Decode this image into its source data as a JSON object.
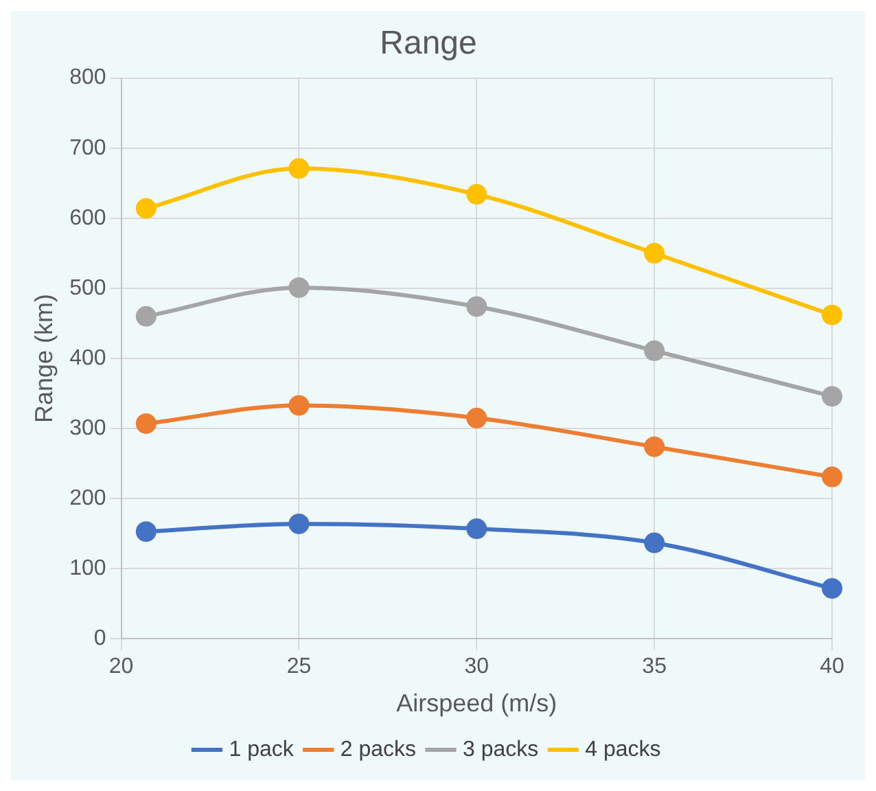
{
  "chart_data": {
    "type": "line",
    "title": "Range",
    "xlabel": "Airspeed (m/s)",
    "ylabel": "Range (km)",
    "x": [
      20.7,
      25,
      30,
      35,
      40
    ],
    "series": [
      {
        "name": "1 pack",
        "color": "#4472c4",
        "values": [
          153,
          164,
          157,
          137,
          72
        ]
      },
      {
        "name": "2 packs",
        "color": "#ed7d31",
        "values": [
          307,
          333,
          315,
          274,
          231
        ]
      },
      {
        "name": "3 packs",
        "color": "#a5a5a5",
        "values": [
          460,
          501,
          474,
          411,
          346
        ]
      },
      {
        "name": "4 packs",
        "color": "#ffc000",
        "values": [
          614,
          671,
          634,
          550,
          462
        ]
      }
    ],
    "xlim": [
      20,
      40
    ],
    "xticks": [
      20,
      25,
      30,
      35,
      40
    ],
    "ylim": [
      0,
      800
    ],
    "yticks": [
      0,
      100,
      200,
      300,
      400,
      500,
      600,
      700,
      800
    ],
    "grid": true,
    "legend": "bottom",
    "marker": "circle",
    "line_style": "solid"
  }
}
